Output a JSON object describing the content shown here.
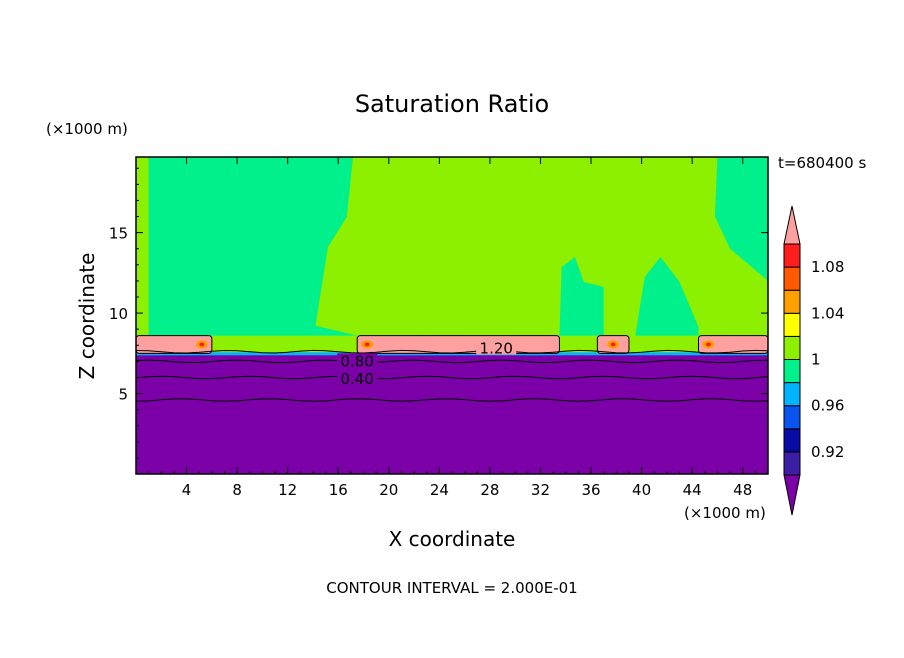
{
  "chart_data": {
    "type": "heatmap",
    "title": "Saturation Ratio",
    "xlabel": "X coordinate",
    "ylabel": "Z coordinate",
    "x_unit": "(×1000 m)",
    "y_unit": "(×1000 m)",
    "time_label": "t=680400 s",
    "footer": "CONTOUR INTERVAL = 2.000E-01",
    "xlim": [
      0,
      50
    ],
    "ylim": [
      0,
      19.7
    ],
    "x_ticks": [
      4,
      8,
      12,
      16,
      20,
      24,
      28,
      32,
      36,
      40,
      44,
      48
    ],
    "y_ticks": [
      5,
      10,
      15
    ],
    "colorbar": {
      "tick_labels": [
        "0.92",
        "0.96",
        "1",
        "1.04",
        "1.08"
      ],
      "levels": [
        {
          "min": null,
          "max": 0.9,
          "color": "#7b00a8"
        },
        {
          "min": 0.9,
          "max": 0.92,
          "color": "#3c1fa6"
        },
        {
          "min": 0.92,
          "max": 0.94,
          "color": "#0a0aa6"
        },
        {
          "min": 0.94,
          "max": 0.96,
          "color": "#0a55f0"
        },
        {
          "min": 0.96,
          "max": 0.98,
          "color": "#00b4ff"
        },
        {
          "min": 0.98,
          "max": 1.0,
          "color": "#00f08c"
        },
        {
          "min": 1.0,
          "max": 1.02,
          "color": "#8cf000"
        },
        {
          "min": 1.02,
          "max": 1.04,
          "color": "#ffff00"
        },
        {
          "min": 1.04,
          "max": 1.06,
          "color": "#ffa000"
        },
        {
          "min": 1.06,
          "max": 1.08,
          "color": "#ff5a00"
        },
        {
          "min": 1.08,
          "max": 1.1,
          "color": "#ff1e1e"
        },
        {
          "min": 1.1,
          "max": null,
          "color": "#ffa0a0"
        }
      ]
    },
    "contour_labels": [
      {
        "text": "1.20",
        "x": 28.5,
        "y": 7.8
      },
      {
        "text": "0.80",
        "x": 17.5,
        "y": 7.0
      },
      {
        "text": "0.40",
        "x": 17.5,
        "y": 5.9
      }
    ],
    "layers": {
      "free_troposphere_value": 1.01,
      "cloud_value": 1.15,
      "cloud_base_z": 7.5,
      "cloud_top_z": 8.6,
      "dry_layer_top_z": 7.5,
      "contour_z": [
        7.6,
        7.0,
        6.0,
        4.6
      ]
    },
    "cloud_segments_x": [
      [
        0,
        6
      ],
      [
        17.5,
        33.5
      ],
      [
        36.5,
        39
      ],
      [
        44.5,
        50
      ]
    ],
    "subsaturated_regions_x": [
      [
        1,
        17.5
      ],
      [
        33.5,
        37
      ],
      [
        39.5,
        44.5
      ]
    ]
  }
}
